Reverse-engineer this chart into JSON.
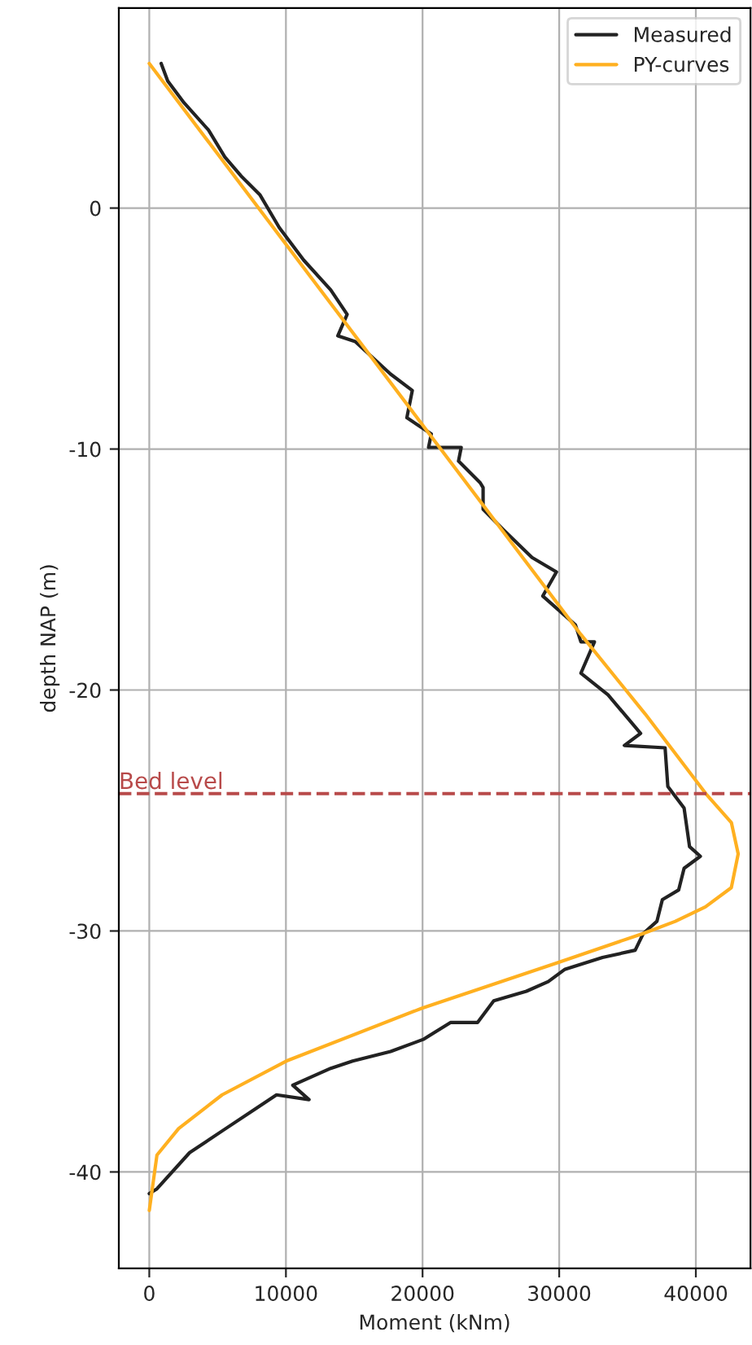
{
  "chart_data": {
    "type": "line",
    "xlabel": "Moment (kNm)",
    "ylabel": "depth NAP (m)",
    "xlim": [
      -2230,
      44000
    ],
    "ylim": [
      -44,
      8.3
    ],
    "xticks": [
      0,
      10000,
      20000,
      30000,
      40000
    ],
    "yticks": [
      -40,
      -30,
      -20,
      -10,
      0
    ],
    "grid": true,
    "legend": "top right",
    "marker": "none",
    "line_style": "solid",
    "series": [
      {
        "name": "Measured",
        "color": "#222222",
        "x": [
          870,
          1350,
          2540,
          4330,
          5530,
          6720,
          8110,
          9510,
          11300,
          13280,
          14480,
          13800,
          15070,
          17660,
          19250,
          18850,
          20640,
          20440,
          22830,
          22630,
          24220,
          24430,
          24430,
          26010,
          28010,
          29800,
          28800,
          31190,
          31590,
          32580,
          31590,
          33570,
          35960,
          34770,
          37750,
          37950,
          39140,
          39540,
          40330,
          39140,
          38740,
          37550,
          37150,
          36160,
          35560,
          33170,
          30390,
          29200,
          27600,
          25210,
          24020,
          22040,
          20050,
          17660,
          14880,
          13280,
          10500,
          11690,
          9310,
          7720,
          5330,
          2950,
          560,
          0
        ],
        "values": [
          6.0,
          5.27,
          4.37,
          3.24,
          2.12,
          1.33,
          0.54,
          -0.81,
          -2.16,
          -3.4,
          -4.41,
          -5.3,
          -5.54,
          -6.89,
          -7.57,
          -8.7,
          -9.37,
          -9.93,
          -9.93,
          -10.5,
          -11.4,
          -11.6,
          -12.5,
          -13.4,
          -14.5,
          -15.1,
          -16.1,
          -17.3,
          -18.0,
          -18.0,
          -19.3,
          -20.2,
          -21.8,
          -22.3,
          -22.4,
          -24.0,
          -24.9,
          -26.5,
          -26.9,
          -27.4,
          -28.3,
          -28.7,
          -29.6,
          -30.1,
          -30.8,
          -31.1,
          -31.6,
          -32.1,
          -32.5,
          -32.9,
          -33.8,
          -33.8,
          -34.5,
          -35.0,
          -35.4,
          -35.7,
          -36.4,
          -37.0,
          -36.8,
          -37.4,
          -38.3,
          -39.2,
          -40.7,
          -40.9
        ]
      },
      {
        "name": "PY-curves",
        "color": "#ffb020",
        "x": [
          0,
          10000,
          20000,
          31590,
          36300,
          40730,
          42600,
          43100,
          42600,
          40700,
          38500,
          36160,
          29960,
          19970,
          10020,
          5330,
          2150,
          560,
          0
        ],
        "values": [
          6.0,
          -1.5,
          -9.0,
          -17.7,
          -21.0,
          -24.3,
          -25.5,
          -26.8,
          -28.2,
          -29.0,
          -29.6,
          -30.1,
          -31.3,
          -33.2,
          -35.4,
          -36.8,
          -38.2,
          -39.3,
          -41.6
        ]
      }
    ],
    "ref_lines": [
      {
        "axis": "y",
        "value": -24.3,
        "label": "Bed level",
        "color": "#b84a4a",
        "line_style": "dashed"
      }
    ]
  }
}
